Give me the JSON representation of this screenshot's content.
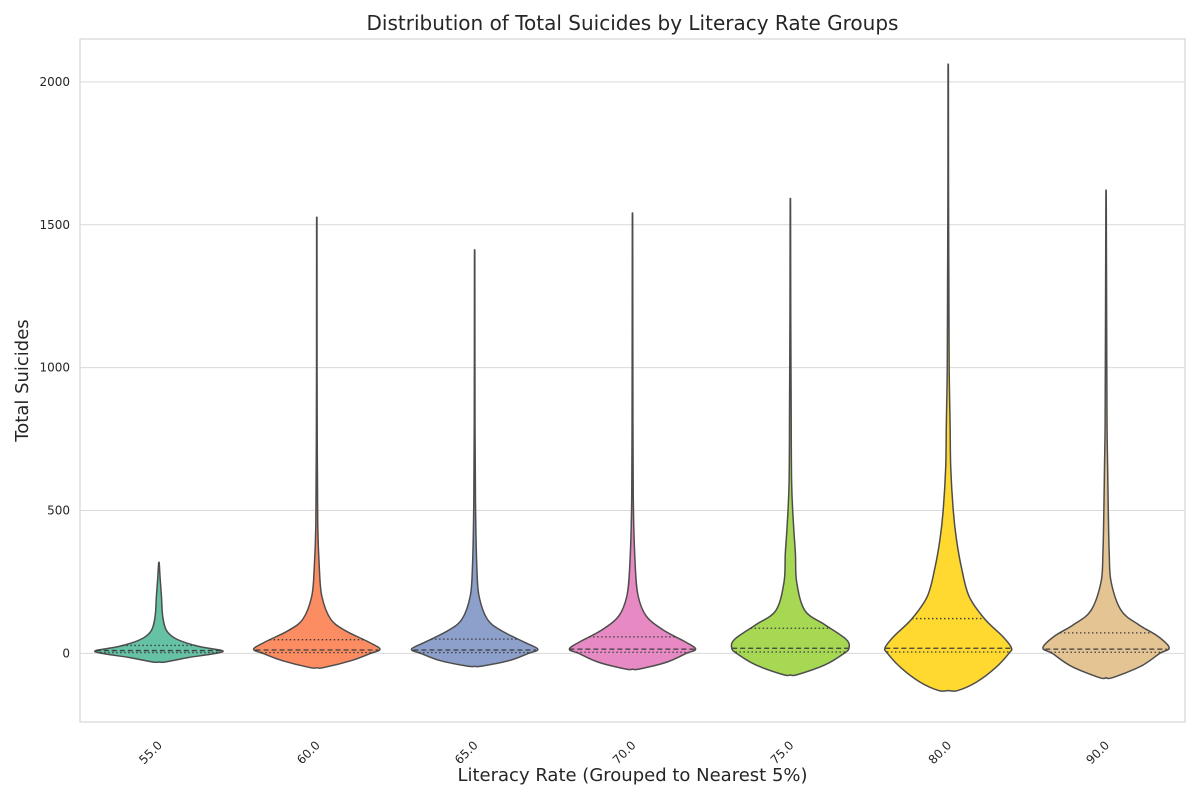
{
  "chart_data": {
    "type": "violin",
    "title": "Distribution of Total Suicides by Literacy Rate Groups",
    "xlabel": "Literacy Rate (Grouped to Nearest 5%)",
    "ylabel": "Total Suicides",
    "ylim": [
      -240,
      2150
    ],
    "yticks": [
      0,
      500,
      1000,
      1500,
      2000
    ],
    "grid": true,
    "inner": "quartile",
    "categories": [
      "55.0",
      "60.0",
      "65.0",
      "70.0",
      "75.0",
      "80.0",
      "90.0"
    ],
    "colors": [
      "#66c2a5",
      "#fc8d62",
      "#8da0cb",
      "#e78ac3",
      "#a6d854",
      "#ffd92f",
      "#e5c494"
    ],
    "violins": [
      {
        "category": "55.0",
        "min": -30,
        "max": 315,
        "q1": 3,
        "median": 10,
        "q3": 28,
        "profile": [
          [
            -30,
            0.1
          ],
          [
            -15,
            0.45
          ],
          [
            0,
            0.9
          ],
          [
            10,
            1.0
          ],
          [
            25,
            0.62
          ],
          [
            50,
            0.28
          ],
          [
            80,
            0.12
          ],
          [
            130,
            0.06
          ],
          [
            200,
            0.04
          ],
          [
            260,
            0.02
          ],
          [
            315,
            0.005
          ]
        ]
      },
      {
        "category": "60.0",
        "min": -50,
        "max": 1490,
        "q1": 3,
        "median": 12,
        "q3": 48,
        "profile": [
          [
            -50,
            0.1
          ],
          [
            -25,
            0.55
          ],
          [
            0,
            0.85
          ],
          [
            15,
            1.0
          ],
          [
            40,
            0.82
          ],
          [
            80,
            0.45
          ],
          [
            120,
            0.22
          ],
          [
            200,
            0.08
          ],
          [
            300,
            0.04
          ],
          [
            450,
            0.015
          ],
          [
            700,
            0.008
          ],
          [
            1000,
            0.004
          ],
          [
            1490,
            0.003
          ]
        ]
      },
      {
        "category": "65.0",
        "min": -45,
        "max": 1370,
        "q1": 3,
        "median": 12,
        "q3": 50,
        "profile": [
          [
            -45,
            0.1
          ],
          [
            -25,
            0.55
          ],
          [
            0,
            0.85
          ],
          [
            15,
            1.0
          ],
          [
            40,
            0.78
          ],
          [
            80,
            0.42
          ],
          [
            120,
            0.2
          ],
          [
            200,
            0.07
          ],
          [
            300,
            0.035
          ],
          [
            500,
            0.015
          ],
          [
            800,
            0.006
          ],
          [
            1370,
            0.003
          ]
        ]
      },
      {
        "category": "70.0",
        "min": -55,
        "max": 1490,
        "q1": 4,
        "median": 15,
        "q3": 58,
        "profile": [
          [
            -55,
            0.1
          ],
          [
            -30,
            0.55
          ],
          [
            0,
            0.85
          ],
          [
            15,
            1.0
          ],
          [
            40,
            0.84
          ],
          [
            80,
            0.5
          ],
          [
            130,
            0.22
          ],
          [
            200,
            0.09
          ],
          [
            300,
            0.045
          ],
          [
            500,
            0.015
          ],
          [
            800,
            0.007
          ],
          [
            1490,
            0.003
          ]
        ]
      },
      {
        "category": "75.0",
        "min": -75,
        "max": 1565,
        "q1": 5,
        "median": 18,
        "q3": 88,
        "profile": [
          [
            -75,
            0.1
          ],
          [
            -40,
            0.55
          ],
          [
            0,
            0.85
          ],
          [
            20,
            0.93
          ],
          [
            50,
            0.88
          ],
          [
            100,
            0.55
          ],
          [
            150,
            0.23
          ],
          [
            250,
            0.1
          ],
          [
            350,
            0.08
          ],
          [
            450,
            0.05
          ],
          [
            600,
            0.02
          ],
          [
            900,
            0.012
          ],
          [
            1200,
            0.006
          ],
          [
            1565,
            0.003
          ]
        ]
      },
      {
        "category": "80.0",
        "min": -130,
        "max": 2030,
        "q1": 5,
        "median": 18,
        "q3": 122,
        "profile": [
          [
            -130,
            0.15
          ],
          [
            -100,
            0.45
          ],
          [
            -50,
            0.75
          ],
          [
            0,
            0.96
          ],
          [
            20,
            1.0
          ],
          [
            60,
            0.86
          ],
          [
            120,
            0.58
          ],
          [
            200,
            0.33
          ],
          [
            300,
            0.21
          ],
          [
            400,
            0.13
          ],
          [
            500,
            0.08
          ],
          [
            650,
            0.04
          ],
          [
            800,
            0.03
          ],
          [
            1000,
            0.015
          ],
          [
            1300,
            0.01
          ],
          [
            1600,
            0.005
          ],
          [
            2030,
            0.003
          ]
        ]
      },
      {
        "category": "90.0",
        "min": -85,
        "max": 1585,
        "q1": 4,
        "median": 15,
        "q3": 72,
        "profile": [
          [
            -85,
            0.1
          ],
          [
            -45,
            0.55
          ],
          [
            0,
            0.85
          ],
          [
            20,
            1.0
          ],
          [
            60,
            0.82
          ],
          [
            100,
            0.52
          ],
          [
            150,
            0.24
          ],
          [
            250,
            0.08
          ],
          [
            350,
            0.05
          ],
          [
            500,
            0.035
          ],
          [
            650,
            0.025
          ],
          [
            800,
            0.015
          ],
          [
            1100,
            0.01
          ],
          [
            1585,
            0.003
          ]
        ]
      }
    ]
  }
}
